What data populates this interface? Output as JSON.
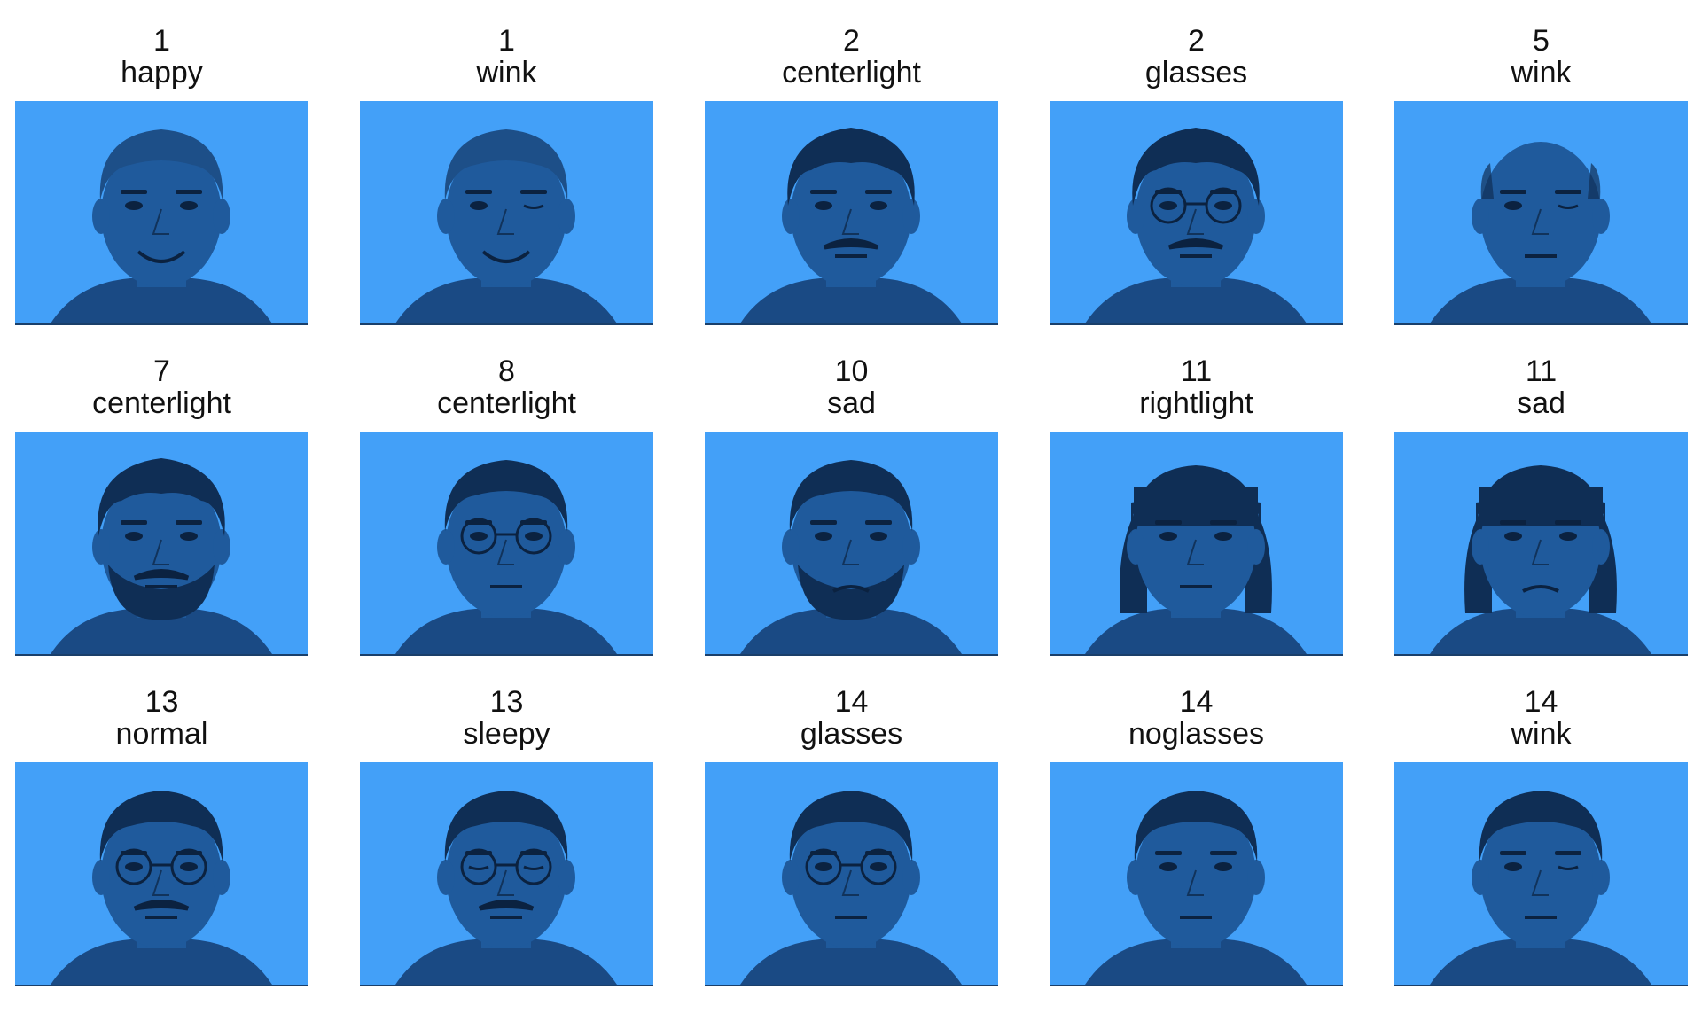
{
  "palette": {
    "background": "#43a0f8",
    "skin": "#1f5a9c",
    "hair": "#0f2e55",
    "dark": "#0b2240",
    "shirt": "#1a4a84"
  },
  "faces": [
    {
      "subject": "1",
      "expression": "happy",
      "hair": "short-light",
      "mustache": false,
      "beard": false,
      "glasses": false,
      "mouth": "smile"
    },
    {
      "subject": "1",
      "expression": "wink",
      "hair": "short-light",
      "mustache": false,
      "beard": false,
      "glasses": false,
      "mouth": "smile",
      "wink": true
    },
    {
      "subject": "2",
      "expression": "centerlight",
      "hair": "curly-dark",
      "mustache": true,
      "beard": false,
      "glasses": false,
      "mouth": "flat"
    },
    {
      "subject": "2",
      "expression": "glasses",
      "hair": "curly-dark",
      "mustache": true,
      "beard": false,
      "glasses": true,
      "mouth": "flat"
    },
    {
      "subject": "5",
      "expression": "wink",
      "hair": "bald",
      "mustache": false,
      "beard": false,
      "glasses": false,
      "mouth": "flat",
      "wink": true
    },
    {
      "subject": "7",
      "expression": "centerlight",
      "hair": "curly-dark",
      "mustache": true,
      "beard": true,
      "glasses": false,
      "mouth": "flat"
    },
    {
      "subject": "8",
      "expression": "centerlight",
      "hair": "short-dark",
      "mustache": false,
      "beard": false,
      "glasses": true,
      "mouth": "flat"
    },
    {
      "subject": "10",
      "expression": "sad",
      "hair": "short-dark",
      "mustache": false,
      "beard": true,
      "glasses": false,
      "mouth": "sad"
    },
    {
      "subject": "11",
      "expression": "rightlight",
      "hair": "bob",
      "mustache": false,
      "beard": false,
      "glasses": false,
      "mouth": "flat"
    },
    {
      "subject": "11",
      "expression": "sad",
      "hair": "bob",
      "mustache": false,
      "beard": false,
      "glasses": false,
      "mouth": "sad"
    },
    {
      "subject": "13",
      "expression": "normal",
      "hair": "short-dark",
      "mustache": true,
      "beard": false,
      "glasses": true,
      "mouth": "flat"
    },
    {
      "subject": "13",
      "expression": "sleepy",
      "hair": "short-dark",
      "mustache": true,
      "beard": false,
      "glasses": true,
      "mouth": "flat",
      "sleepy": true
    },
    {
      "subject": "14",
      "expression": "glasses",
      "hair": "short-dark",
      "mustache": false,
      "beard": false,
      "glasses": true,
      "mouth": "flat"
    },
    {
      "subject": "14",
      "expression": "noglasses",
      "hair": "short-dark",
      "mustache": false,
      "beard": false,
      "glasses": false,
      "mouth": "flat"
    },
    {
      "subject": "14",
      "expression": "wink",
      "hair": "short-dark",
      "mustache": false,
      "beard": false,
      "glasses": false,
      "mouth": "flat",
      "wink": true
    }
  ]
}
